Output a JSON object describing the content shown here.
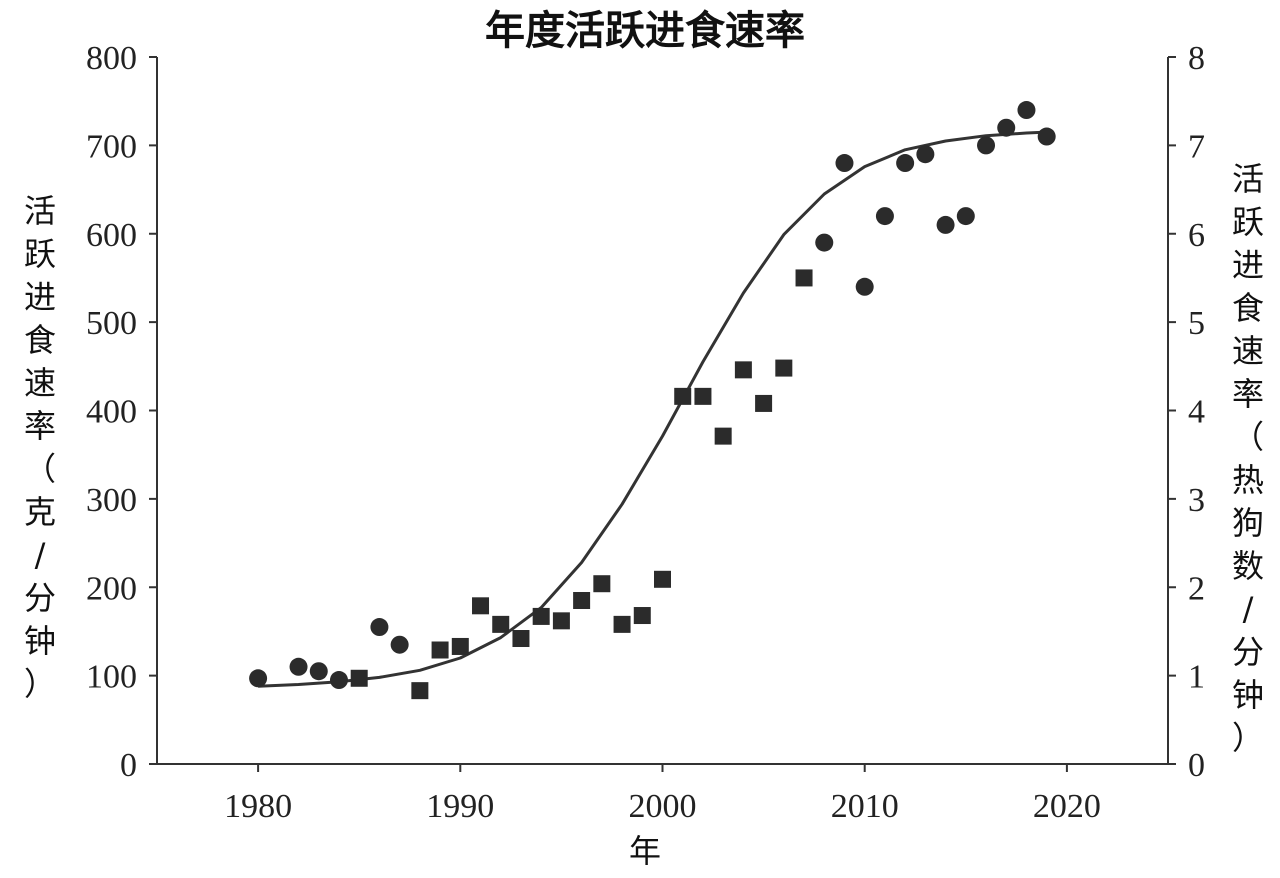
{
  "chart_data": {
    "type": "scatter",
    "title": "年度活跃进食速率",
    "xlabel": "年",
    "ylabel": "活跃进食速率（克/分钟）",
    "y2label": "活跃进食速率（热狗数/分钟）",
    "xlim": [
      1975,
      2025
    ],
    "ylim": [
      0,
      800
    ],
    "y2lim": [
      0,
      8
    ],
    "xticks": [
      1980,
      1990,
      2000,
      2010,
      2020
    ],
    "yticks": [
      0,
      100,
      200,
      300,
      400,
      500,
      600,
      700,
      800
    ],
    "y2ticks": [
      0,
      1,
      2,
      3,
      4,
      5,
      6,
      7,
      8
    ],
    "grid": false,
    "legend": "none",
    "series": [
      {
        "marker": "circle",
        "x": [
          1980,
          1982,
          1983,
          1984,
          1986,
          1987,
          2008,
          2009,
          2010,
          2011,
          2012,
          2013,
          2014,
          2015,
          2016,
          2017,
          2018,
          2019
        ],
        "y": [
          97,
          110,
          105,
          95,
          155,
          135,
          590,
          680,
          540,
          620,
          680,
          690,
          610,
          620,
          700,
          720,
          740,
          710
        ]
      },
      {
        "marker": "square",
        "x": [
          1985,
          1988,
          1989,
          1990,
          1991,
          1992,
          1993,
          1994,
          1995,
          1996,
          1997,
          1998,
          1999,
          2000,
          2001,
          2002,
          2003,
          2004,
          2005,
          2006,
          2007
        ],
        "y": [
          97,
          83,
          129,
          133,
          179,
          158,
          142,
          167,
          162,
          185,
          204,
          158,
          168,
          209,
          416,
          416,
          371,
          446,
          408,
          448,
          550
        ]
      },
      {
        "marker": "line",
        "x": [
          1980,
          1982,
          1984,
          1986,
          1988,
          1990,
          1992,
          1994,
          1996,
          1998,
          2000,
          2002,
          2004,
          2006,
          2008,
          2010,
          2012,
          2014,
          2016,
          2018,
          2019
        ],
        "y": [
          88,
          90,
          93,
          98,
          106,
          120,
          143,
          177,
          228,
          294,
          371,
          455,
          533,
          599,
          645,
          676,
          695,
          705,
          711,
          714,
          715
        ]
      }
    ],
    "colors": {
      "marker": "#2b2b2b",
      "line": "#333333",
      "axis": "#333333"
    }
  }
}
